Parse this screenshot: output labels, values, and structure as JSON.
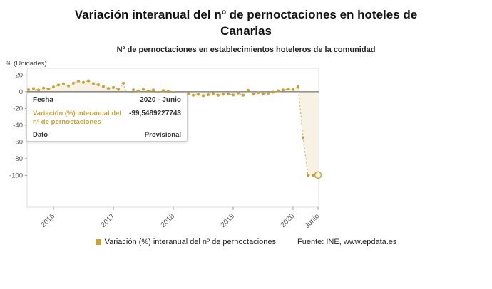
{
  "header": {
    "title_line1": "Variación interanual del nº de pernoctaciones en hoteles de",
    "title_line2": "Canarias",
    "subtitle": "Nº de pernoctaciones en establecimientos hoteleros de la comunidad",
    "y_axis_unit": "% (Unidades)"
  },
  "tooltip": {
    "fecha_label": "Fecha",
    "fecha_value": "2020 - Junio",
    "series_label": "Variación (%) interanual del nº de pernoctaciones",
    "series_value": "-99,5489227743",
    "dato_label": "Dato",
    "dato_value": "Provisional"
  },
  "legend": {
    "series_label": "Variación (%) interanual del nº de pernoctaciones",
    "source": "Fuente: INE, www.epdata.es"
  },
  "colors": {
    "series": "#c9a13b",
    "series_fill": "rgba(201,161,59,0.14)",
    "highlight_fill": "#fdf3dc",
    "axis_line": "#dddddd",
    "zero_line": "#555555",
    "tick_text": "#555555"
  },
  "chart_data": {
    "type": "line",
    "title": "Variación interanual del nº de pernoctaciones en hoteles de Canarias",
    "subtitle": "Nº de pernoctaciones en establecimientos hoteleros de la comunidad",
    "ylabel": "% (Unidades)",
    "ylim": [
      -138,
      28
    ],
    "grid": false,
    "legend_position": "bottom",
    "x": [
      "2015-08",
      "2015-09",
      "2015-10",
      "2015-11",
      "2015-12",
      "2016-01",
      "2016-02",
      "2016-03",
      "2016-04",
      "2016-05",
      "2016-06",
      "2016-07",
      "2016-08",
      "2016-09",
      "2016-10",
      "2016-11",
      "2016-12",
      "2017-01",
      "2017-02",
      "2017-03",
      "2017-04",
      "2017-05",
      "2017-06",
      "2017-07",
      "2017-08",
      "2017-09",
      "2017-10",
      "2017-11",
      "2017-12",
      "2018-01",
      "2018-02",
      "2018-03",
      "2018-04",
      "2018-05",
      "2018-06",
      "2018-07",
      "2018-08",
      "2018-09",
      "2018-10",
      "2018-11",
      "2018-12",
      "2019-01",
      "2019-02",
      "2019-03",
      "2019-04",
      "2019-05",
      "2019-06",
      "2019-07",
      "2019-08",
      "2019-09",
      "2019-10",
      "2019-11",
      "2019-12",
      "2020-01",
      "2020-02",
      "2020-03",
      "2020-04",
      "2020-05",
      "2020-06"
    ],
    "values": [
      2.5,
      3.8,
      2.1,
      4.5,
      3.2,
      5.8,
      8.2,
      9.5,
      7.1,
      10.4,
      12.8,
      11.2,
      13.1,
      9.8,
      8.4,
      6.2,
      3.9,
      5.1,
      2.8,
      10.2,
      -9.8,
      2.4,
      1.1,
      2.9,
      0.8,
      2.2,
      -0.9,
      1.5,
      0.4,
      -1.2,
      -3.5,
      -13.0,
      -2.1,
      -4.2,
      -3.1,
      -4.8,
      -3.5,
      -2.2,
      -4.1,
      -3.0,
      -2.5,
      -3.8,
      -1.5,
      -4.2,
      1.8,
      -2.9,
      -1.1,
      -2.4,
      -1.8,
      -0.5,
      1.2,
      2.1,
      3.4,
      2.8,
      6.1,
      -54.9,
      -100,
      -100,
      -99.5489227743
    ],
    "highlight_point": {
      "x": "2020-06",
      "value": -99.5489227743,
      "label": "2020 - Junio",
      "dato": "Provisional"
    },
    "y_ticks": [
      {
        "value": 20,
        "label": "20"
      },
      {
        "value": 0,
        "label": "0"
      },
      {
        "value": -20,
        "label": "-20"
      },
      {
        "value": -40,
        "label": "-40"
      },
      {
        "value": -60,
        "label": "-60"
      },
      {
        "value": -80,
        "label": "-80"
      },
      {
        "value": -100,
        "label": "-100"
      }
    ],
    "x_ticks": [
      {
        "index": 5,
        "label": "2016"
      },
      {
        "index": 17,
        "label": "2017"
      },
      {
        "index": 29,
        "label": "2018"
      },
      {
        "index": 41,
        "label": "2019"
      },
      {
        "index": 53,
        "label": "2020"
      },
      {
        "index": 58,
        "label": "Junio"
      }
    ]
  }
}
